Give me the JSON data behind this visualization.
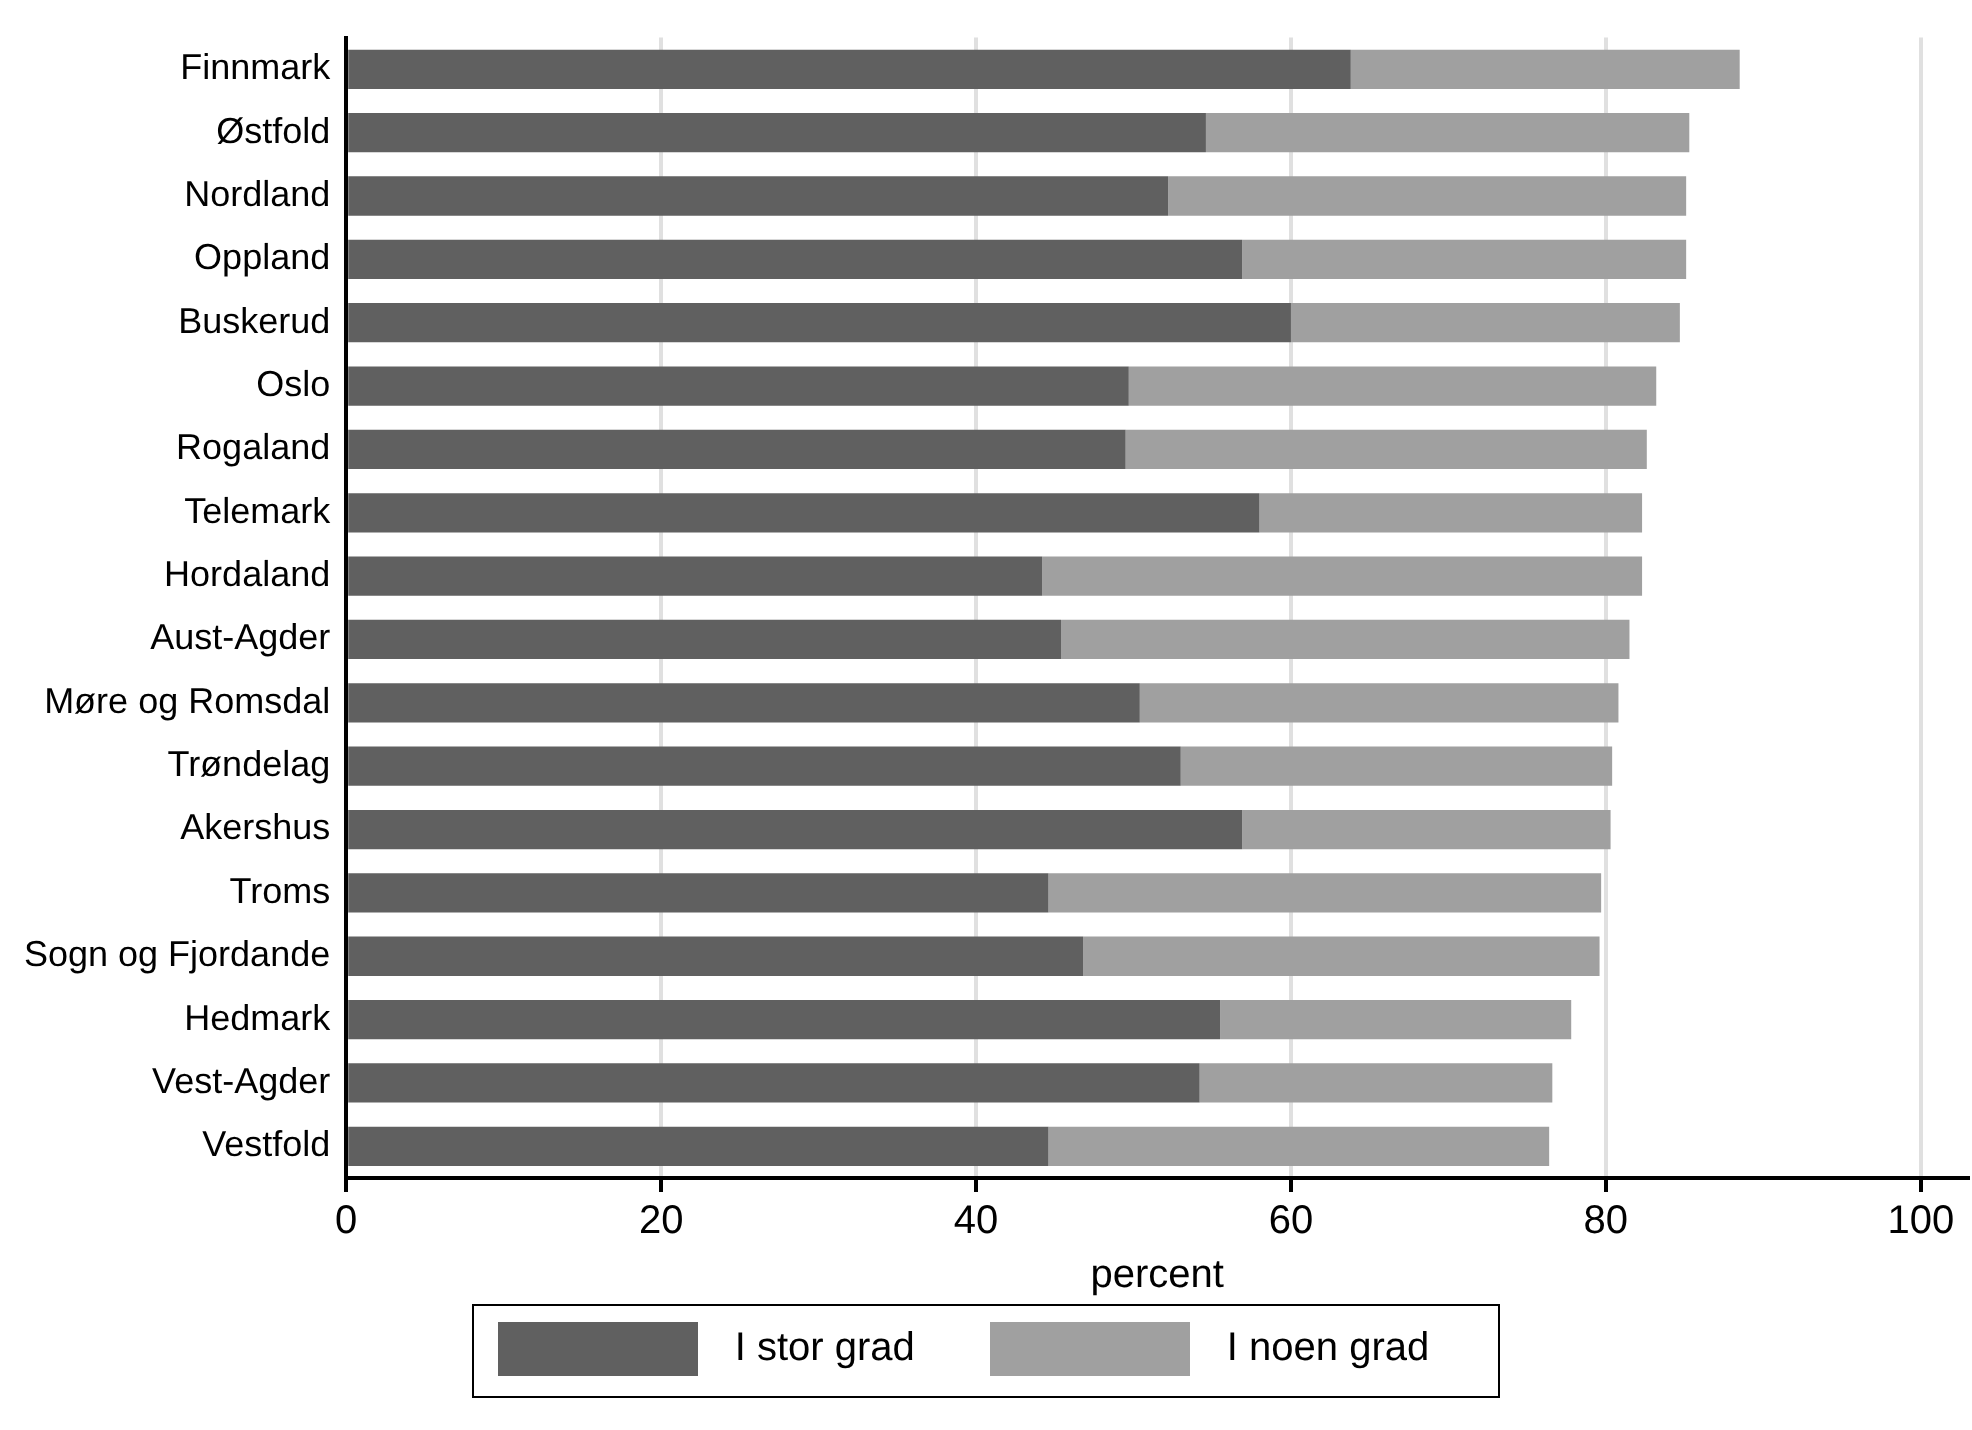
{
  "chart_data": {
    "type": "bar",
    "orientation": "horizontal",
    "stacked": true,
    "xlabel": "percent",
    "categories": [
      "Finnmark",
      "Østfold",
      "Nordland",
      "Oppland",
      "Buskerud",
      "Oslo",
      "Rogaland",
      "Telemark",
      "Hordaland",
      "Aust-Agder",
      "Møre og Romsdal",
      "Trøndelag",
      "Akershus",
      "Troms",
      "Sogn og Fjordande",
      "Hedmark",
      "Vest-Agder",
      "Vestfold"
    ],
    "series": [
      {
        "name": "I stor grad",
        "color": "#606060",
        "values": [
          63.8,
          54.6,
          52.2,
          56.9,
          60.0,
          49.7,
          49.5,
          58.0,
          44.2,
          45.4,
          50.4,
          53.0,
          56.9,
          44.6,
          46.8,
          55.5,
          54.2,
          44.6
        ]
      },
      {
        "name": "I noen grad",
        "color": "#a0a0a0",
        "values": [
          24.7,
          30.7,
          32.9,
          28.2,
          24.7,
          33.5,
          33.1,
          24.3,
          38.1,
          36.1,
          30.4,
          27.4,
          23.4,
          35.1,
          32.8,
          22.3,
          22.4,
          31.8
        ]
      }
    ],
    "xlim": [
      0,
      103
    ],
    "xticks": [
      0,
      20,
      40,
      60,
      80,
      100
    ],
    "grid": "x",
    "legend": "bottom"
  }
}
